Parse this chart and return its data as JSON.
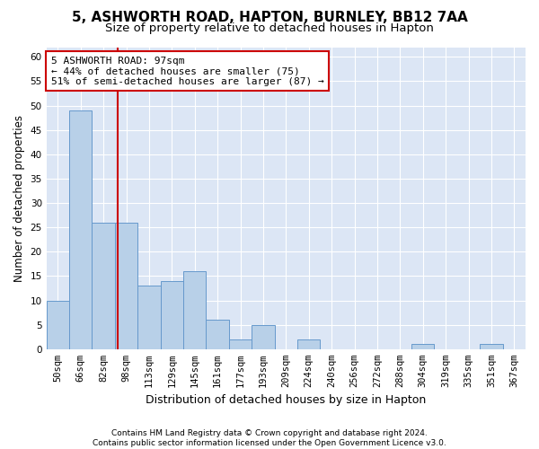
{
  "title_line1": "5, ASHWORTH ROAD, HAPTON, BURNLEY, BB12 7AA",
  "title_line2": "Size of property relative to detached houses in Hapton",
  "xlabel": "Distribution of detached houses by size in Hapton",
  "ylabel": "Number of detached properties",
  "footnote": "Contains HM Land Registry data © Crown copyright and database right 2024.\nContains public sector information licensed under the Open Government Licence v3.0.",
  "bin_labels": [
    "50sqm",
    "66sqm",
    "82sqm",
    "98sqm",
    "113sqm",
    "129sqm",
    "145sqm",
    "161sqm",
    "177sqm",
    "193sqm",
    "209sqm",
    "224sqm",
    "240sqm",
    "256sqm",
    "272sqm",
    "288sqm",
    "304sqm",
    "319sqm",
    "335sqm",
    "351sqm",
    "367sqm"
  ],
  "bar_values": [
    10,
    49,
    26,
    26,
    13,
    14,
    16,
    6,
    2,
    5,
    0,
    2,
    0,
    0,
    0,
    0,
    1,
    0,
    0,
    1,
    0
  ],
  "bar_color": "#b8d0e8",
  "bar_edge_color": "#6699cc",
  "vline_x_index": 2.62,
  "vline_color": "#cc0000",
  "annotation_box_text": "5 ASHWORTH ROAD: 97sqm\n← 44% of detached houses are smaller (75)\n51% of semi-detached houses are larger (87) →",
  "annotation_box_color": "#cc0000",
  "ylim": [
    0,
    62
  ],
  "yticks": [
    0,
    5,
    10,
    15,
    20,
    25,
    30,
    35,
    40,
    45,
    50,
    55,
    60
  ],
  "plot_bg_color": "#dce6f5",
  "figure_bg_color": "#ffffff",
  "grid_color": "#ffffff",
  "title_fontsize": 11,
  "subtitle_fontsize": 9.5,
  "ylabel_fontsize": 8.5,
  "xlabel_fontsize": 9,
  "tick_fontsize": 7.5,
  "footnote_fontsize": 6.5,
  "annot_fontsize": 8
}
